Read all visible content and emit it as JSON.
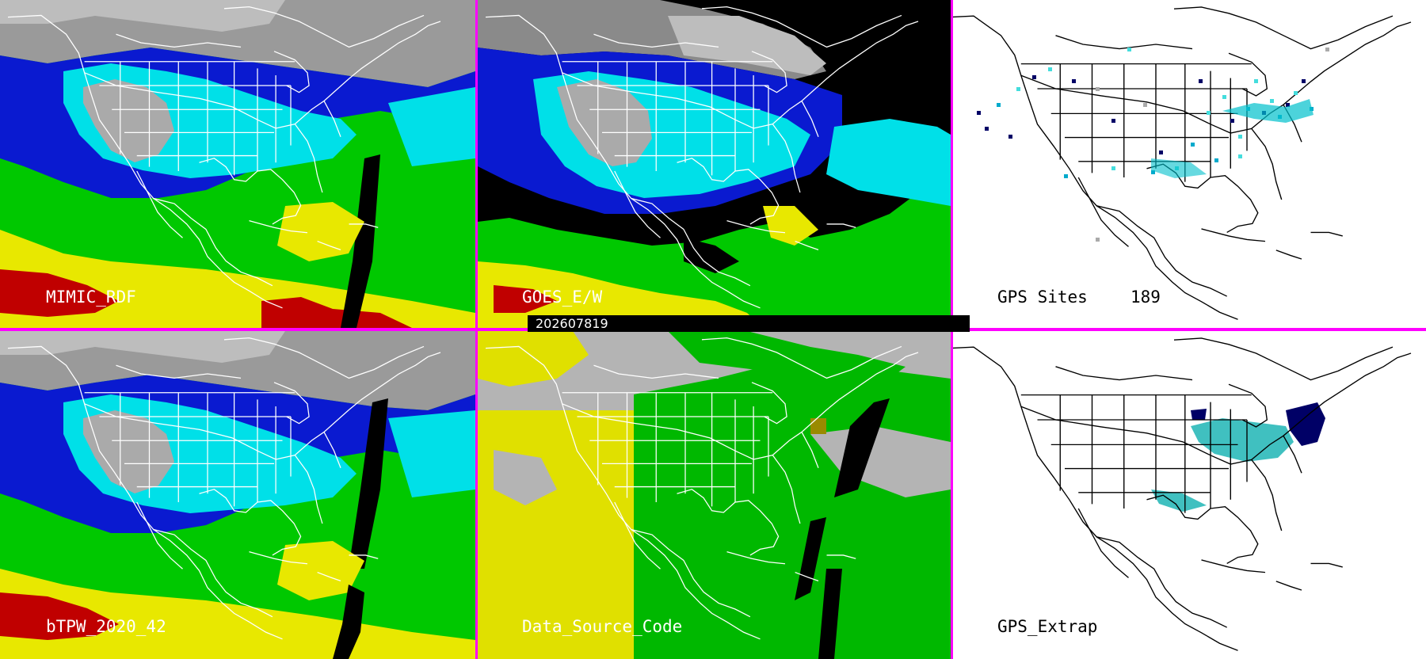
{
  "timestamp": "202607819",
  "panels": {
    "top_left": {
      "label": "MIMIC_RDF"
    },
    "top_middle": {
      "label": "GOES_E/W"
    },
    "top_right": {
      "label": "GPS Sites",
      "count": "189"
    },
    "bottom_left": {
      "label": "bTPW_2020_42"
    },
    "bottom_middle": {
      "label": "Data_Source_Code"
    },
    "bottom_right": {
      "label": "GPS_Extrap"
    }
  },
  "colors": {
    "divider": "#ff00ff",
    "tpw_scale": [
      "#9a9a9a",
      "#0a0a8a",
      "#0a1ad0",
      "#00e0e8",
      "#00c800",
      "#e8e800",
      "#c00000",
      "#d060c0"
    ],
    "source_code": {
      "gps": "#e0e000",
      "satellite": "#00b800",
      "none": "#b4b4b4"
    },
    "gps_markers": [
      "#000066",
      "#00aacc",
      "#44dddd",
      "#aaaaaa"
    ]
  }
}
